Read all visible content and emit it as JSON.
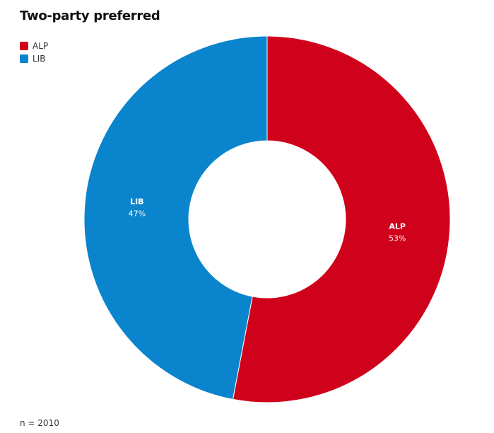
{
  "chart_data": {
    "type": "pie",
    "variant": "donut",
    "title": "Two-party preferred",
    "slices": [
      {
        "label": "ALP",
        "value": 53,
        "value_text": "53%",
        "color": "#d0021b"
      },
      {
        "label": "LIB",
        "value": 47,
        "value_text": "47%",
        "color": "#0a84cc"
      }
    ],
    "legend": {
      "position": "top-left",
      "entries": [
        "ALP",
        "LIB"
      ]
    },
    "footnote": "n = 2010"
  }
}
